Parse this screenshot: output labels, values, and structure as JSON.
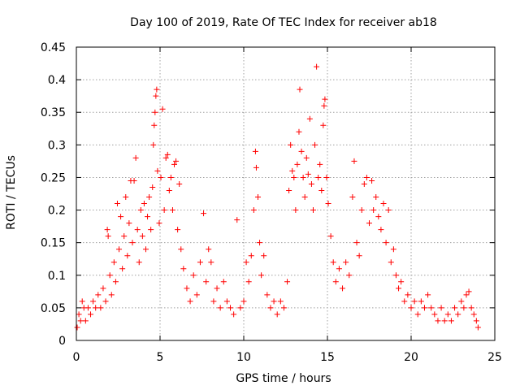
{
  "chart_data": {
    "type": "scatter",
    "title": "Day 100 of 2019, Rate Of TEC Index for receiver ab18",
    "xlabel": "GPS time / hours",
    "ylabel": "ROTI / TECUs",
    "xlim": [
      0,
      25
    ],
    "ylim": [
      0,
      0.45
    ],
    "x_ticks": [
      "0",
      "5",
      "10",
      "15",
      "20",
      "25"
    ],
    "y_ticks": [
      "0",
      "0.05",
      "0.1",
      "0.15",
      "0.2",
      "0.25",
      "0.3",
      "0.35",
      "0.4",
      "0.45"
    ],
    "grid": true,
    "marker": "+",
    "color": "#ff0000",
    "points": [
      [
        0.05,
        0.02
      ],
      [
        0.15,
        0.04
      ],
      [
        0.25,
        0.03
      ],
      [
        0.35,
        0.06
      ],
      [
        0.45,
        0.05
      ],
      [
        0.55,
        0.03
      ],
      [
        0.7,
        0.05
      ],
      [
        0.85,
        0.04
      ],
      [
        1.0,
        0.06
      ],
      [
        1.15,
        0.05
      ],
      [
        1.3,
        0.07
      ],
      [
        1.45,
        0.05
      ],
      [
        1.6,
        0.08
      ],
      [
        1.75,
        0.06
      ],
      [
        1.85,
        0.17
      ],
      [
        1.9,
        0.16
      ],
      [
        2.0,
        0.1
      ],
      [
        2.1,
        0.07
      ],
      [
        2.25,
        0.12
      ],
      [
        2.35,
        0.09
      ],
      [
        2.45,
        0.21
      ],
      [
        2.55,
        0.14
      ],
      [
        2.65,
        0.19
      ],
      [
        2.75,
        0.11
      ],
      [
        2.85,
        0.16
      ],
      [
        2.95,
        0.22
      ],
      [
        3.05,
        0.13
      ],
      [
        3.15,
        0.18
      ],
      [
        3.25,
        0.245
      ],
      [
        3.35,
        0.15
      ],
      [
        3.45,
        0.245
      ],
      [
        3.55,
        0.28
      ],
      [
        3.65,
        0.17
      ],
      [
        3.75,
        0.12
      ],
      [
        3.85,
        0.2
      ],
      [
        3.95,
        0.16
      ],
      [
        4.05,
        0.21
      ],
      [
        4.15,
        0.14
      ],
      [
        4.25,
        0.19
      ],
      [
        4.35,
        0.22
      ],
      [
        4.45,
        0.17
      ],
      [
        4.55,
        0.235
      ],
      [
        4.6,
        0.3
      ],
      [
        4.65,
        0.33
      ],
      [
        4.7,
        0.35
      ],
      [
        4.75,
        0.375
      ],
      [
        4.8,
        0.385
      ],
      [
        4.85,
        0.26
      ],
      [
        4.95,
        0.18
      ],
      [
        5.05,
        0.25
      ],
      [
        5.15,
        0.355
      ],
      [
        5.25,
        0.2
      ],
      [
        5.35,
        0.28
      ],
      [
        5.45,
        0.285
      ],
      [
        5.55,
        0.23
      ],
      [
        5.65,
        0.25
      ],
      [
        5.75,
        0.2
      ],
      [
        5.85,
        0.27
      ],
      [
        5.95,
        0.275
      ],
      [
        6.05,
        0.17
      ],
      [
        6.15,
        0.24
      ],
      [
        6.25,
        0.14
      ],
      [
        6.4,
        0.11
      ],
      [
        6.6,
        0.08
      ],
      [
        6.8,
        0.06
      ],
      [
        7.0,
        0.1
      ],
      [
        7.2,
        0.07
      ],
      [
        7.4,
        0.12
      ],
      [
        7.6,
        0.195
      ],
      [
        7.75,
        0.09
      ],
      [
        7.9,
        0.14
      ],
      [
        8.05,
        0.12
      ],
      [
        8.2,
        0.06
      ],
      [
        8.4,
        0.08
      ],
      [
        8.6,
        0.05
      ],
      [
        8.8,
        0.09
      ],
      [
        9.0,
        0.06
      ],
      [
        9.2,
        0.05
      ],
      [
        9.4,
        0.04
      ],
      [
        9.6,
        0.185
      ],
      [
        9.8,
        0.05
      ],
      [
        10.0,
        0.06
      ],
      [
        10.15,
        0.12
      ],
      [
        10.3,
        0.09
      ],
      [
        10.45,
        0.13
      ],
      [
        10.6,
        0.2
      ],
      [
        10.7,
        0.29
      ],
      [
        10.75,
        0.265
      ],
      [
        10.85,
        0.22
      ],
      [
        10.95,
        0.15
      ],
      [
        11.05,
        0.1
      ],
      [
        11.2,
        0.13
      ],
      [
        11.4,
        0.07
      ],
      [
        11.6,
        0.05
      ],
      [
        11.8,
        0.06
      ],
      [
        12.0,
        0.04
      ],
      [
        12.2,
        0.06
      ],
      [
        12.4,
        0.05
      ],
      [
        12.6,
        0.09
      ],
      [
        12.7,
        0.23
      ],
      [
        12.8,
        0.3
      ],
      [
        12.9,
        0.26
      ],
      [
        13.0,
        0.25
      ],
      [
        13.1,
        0.2
      ],
      [
        13.2,
        0.27
      ],
      [
        13.3,
        0.32
      ],
      [
        13.35,
        0.385
      ],
      [
        13.45,
        0.29
      ],
      [
        13.55,
        0.25
      ],
      [
        13.65,
        0.22
      ],
      [
        13.75,
        0.28
      ],
      [
        13.85,
        0.255
      ],
      [
        13.95,
        0.34
      ],
      [
        14.05,
        0.24
      ],
      [
        14.15,
        0.2
      ],
      [
        14.25,
        0.3
      ],
      [
        14.35,
        0.42
      ],
      [
        14.45,
        0.25
      ],
      [
        14.55,
        0.27
      ],
      [
        14.65,
        0.23
      ],
      [
        14.75,
        0.33
      ],
      [
        14.8,
        0.36
      ],
      [
        14.85,
        0.37
      ],
      [
        14.95,
        0.25
      ],
      [
        15.05,
        0.21
      ],
      [
        15.2,
        0.16
      ],
      [
        15.35,
        0.12
      ],
      [
        15.5,
        0.09
      ],
      [
        15.7,
        0.11
      ],
      [
        15.9,
        0.08
      ],
      [
        16.1,
        0.12
      ],
      [
        16.3,
        0.1
      ],
      [
        16.5,
        0.22
      ],
      [
        16.6,
        0.275
      ],
      [
        16.75,
        0.15
      ],
      [
        16.9,
        0.13
      ],
      [
        17.05,
        0.2
      ],
      [
        17.2,
        0.24
      ],
      [
        17.35,
        0.25
      ],
      [
        17.5,
        0.18
      ],
      [
        17.65,
        0.245
      ],
      [
        17.75,
        0.2
      ],
      [
        17.9,
        0.22
      ],
      [
        18.05,
        0.19
      ],
      [
        18.2,
        0.17
      ],
      [
        18.35,
        0.21
      ],
      [
        18.5,
        0.15
      ],
      [
        18.65,
        0.2
      ],
      [
        18.8,
        0.12
      ],
      [
        18.95,
        0.14
      ],
      [
        19.1,
        0.1
      ],
      [
        19.25,
        0.08
      ],
      [
        19.4,
        0.09
      ],
      [
        19.6,
        0.06
      ],
      [
        19.8,
        0.07
      ],
      [
        20.0,
        0.05
      ],
      [
        20.2,
        0.06
      ],
      [
        20.4,
        0.04
      ],
      [
        20.6,
        0.06
      ],
      [
        20.8,
        0.05
      ],
      [
        21.0,
        0.07
      ],
      [
        21.2,
        0.05
      ],
      [
        21.4,
        0.04
      ],
      [
        21.6,
        0.03
      ],
      [
        21.8,
        0.05
      ],
      [
        22.0,
        0.03
      ],
      [
        22.2,
        0.04
      ],
      [
        22.4,
        0.03
      ],
      [
        22.6,
        0.05
      ],
      [
        22.8,
        0.04
      ],
      [
        23.0,
        0.06
      ],
      [
        23.15,
        0.05
      ],
      [
        23.3,
        0.07
      ],
      [
        23.45,
        0.075
      ],
      [
        23.6,
        0.05
      ],
      [
        23.75,
        0.04
      ],
      [
        23.9,
        0.03
      ],
      [
        24.0,
        0.02
      ]
    ]
  }
}
